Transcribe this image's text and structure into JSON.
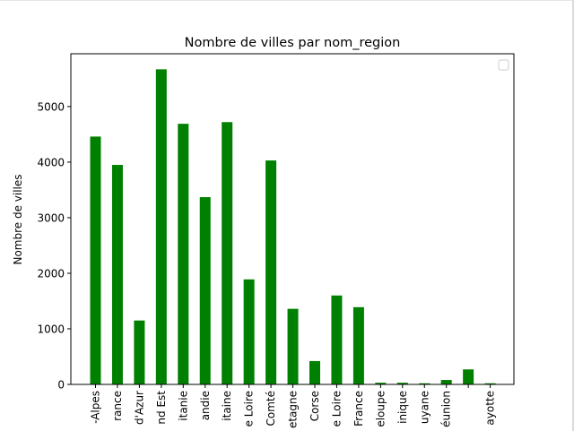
{
  "chart_data": {
    "type": "bar",
    "title": "Nombre de villes par nom_region",
    "xlabel": "",
    "ylabel": "Nombre de villes",
    "ylim": [
      0,
      5950
    ],
    "yticks": [
      0,
      1000,
      2000,
      3000,
      4000,
      5000
    ],
    "tick_labels": [
      "-Alpes",
      "rance",
      "d'Azur",
      "nd Est",
      "itanie",
      "andie",
      "itaine",
      "e Loire",
      "Comté",
      "etagne",
      "Corse",
      "e Loire",
      "France",
      "eloupe",
      "inique",
      "uyane",
      "éunion",
      "",
      "ayotte"
    ],
    "values": [
      4460,
      3950,
      1150,
      5670,
      4690,
      3370,
      4720,
      1890,
      4030,
      1360,
      420,
      1600,
      1390,
      30,
      30,
      20,
      80,
      270,
      20
    ],
    "bar_color": "#008000",
    "legend": {
      "placement": "top-right",
      "entries": []
    },
    "grid": false
  }
}
